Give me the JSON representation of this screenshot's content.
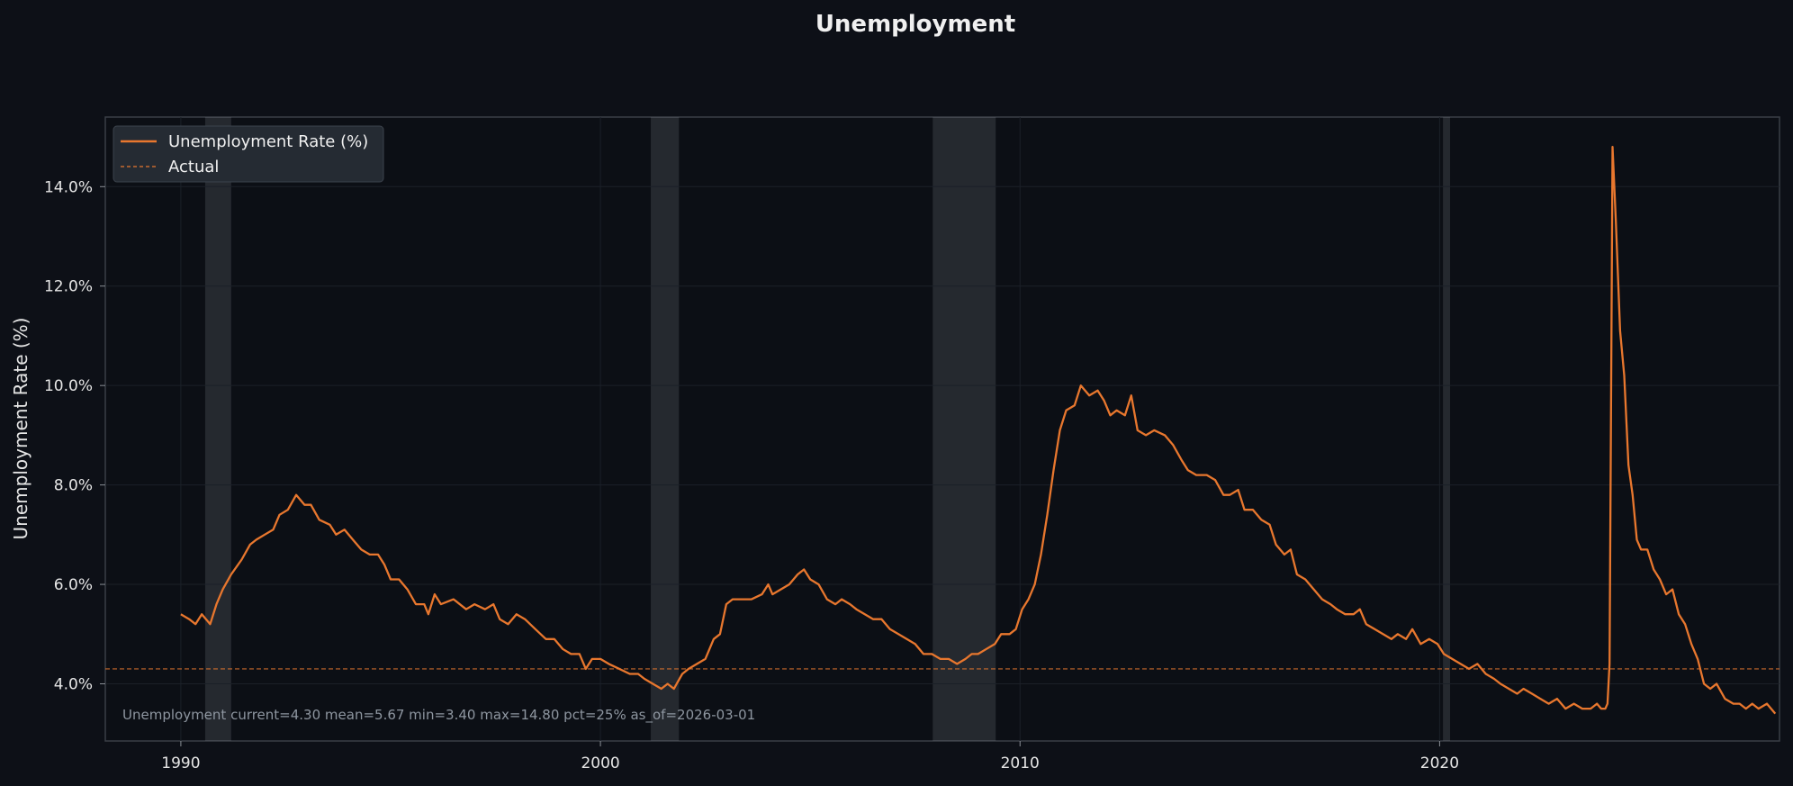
{
  "chart_data": {
    "type": "line",
    "title": "Unemployment",
    "xlabel": "",
    "ylabel": "Unemployment Rate (%)",
    "xlim": [
      1988.2,
      2028.1
    ],
    "ylim": [
      2.85,
      15.4
    ],
    "x_ticks": [
      1990,
      2000,
      2010,
      2020
    ],
    "y_ticks": [
      4,
      6,
      8,
      10,
      12,
      14
    ],
    "y_tick_labels": [
      "4.0%",
      "6.0%",
      "8.0%",
      "10.0%",
      "12.0%",
      "14.0%"
    ],
    "grid": true,
    "legend": {
      "placement": "top-left",
      "entries": [
        "Unemployment Rate (%)",
        "Actual"
      ]
    },
    "recessions": [
      {
        "start": 1990.58,
        "end": 1991.2
      },
      {
        "start": 2001.2,
        "end": 2001.87
      },
      {
        "start": 2007.92,
        "end": 2009.42
      },
      {
        "start": 2020.08,
        "end": 2020.25
      }
    ],
    "reference_line": {
      "name": "Actual",
      "value": 4.3
    },
    "annotation": "Unemployment  current=4.30  mean=5.67  min=3.40  max=14.80  pct=25%  as_of=2026-03-01",
    "series": [
      {
        "name": "Unemployment Rate (%)",
        "color": "#e8772e",
        "points": [
          [
            1990.0,
            5.4
          ],
          [
            1990.2,
            5.3
          ],
          [
            1990.35,
            5.2
          ],
          [
            1990.5,
            5.4
          ],
          [
            1990.7,
            5.2
          ],
          [
            1990.85,
            5.6
          ],
          [
            1991.0,
            5.9
          ],
          [
            1991.2,
            6.2
          ],
          [
            1991.45,
            6.5
          ],
          [
            1991.65,
            6.8
          ],
          [
            1991.8,
            6.9
          ],
          [
            1992.0,
            7.0
          ],
          [
            1992.2,
            7.1
          ],
          [
            1992.35,
            7.4
          ],
          [
            1992.55,
            7.5
          ],
          [
            1992.75,
            7.8
          ],
          [
            1992.95,
            7.6
          ],
          [
            1993.1,
            7.6
          ],
          [
            1993.3,
            7.3
          ],
          [
            1993.55,
            7.2
          ],
          [
            1993.7,
            7.0
          ],
          [
            1993.9,
            7.1
          ],
          [
            1994.1,
            6.9
          ],
          [
            1994.3,
            6.7
          ],
          [
            1994.5,
            6.6
          ],
          [
            1994.7,
            6.6
          ],
          [
            1994.85,
            6.4
          ],
          [
            1995.0,
            6.1
          ],
          [
            1995.2,
            6.1
          ],
          [
            1995.4,
            5.9
          ],
          [
            1995.6,
            5.6
          ],
          [
            1995.8,
            5.6
          ],
          [
            1995.9,
            5.4
          ],
          [
            1996.05,
            5.8
          ],
          [
            1996.2,
            5.6
          ],
          [
            1996.5,
            5.7
          ],
          [
            1996.8,
            5.5
          ],
          [
            1997.0,
            5.6
          ],
          [
            1997.25,
            5.5
          ],
          [
            1997.45,
            5.6
          ],
          [
            1997.6,
            5.3
          ],
          [
            1997.8,
            5.2
          ],
          [
            1998.0,
            5.4
          ],
          [
            1998.2,
            5.3
          ],
          [
            1998.45,
            5.1
          ],
          [
            1998.7,
            4.9
          ],
          [
            1998.9,
            4.9
          ],
          [
            1999.1,
            4.7
          ],
          [
            1999.3,
            4.6
          ],
          [
            1999.5,
            4.6
          ],
          [
            1999.65,
            4.3
          ],
          [
            1999.8,
            4.5
          ],
          [
            2000.0,
            4.5
          ],
          [
            2000.2,
            4.4
          ],
          [
            2000.45,
            4.3
          ],
          [
            2000.7,
            4.2
          ],
          [
            2000.9,
            4.2
          ],
          [
            2001.05,
            4.1
          ],
          [
            2001.25,
            4.0
          ],
          [
            2001.45,
            3.9
          ],
          [
            2001.6,
            4.0
          ],
          [
            2001.75,
            3.9
          ],
          [
            2001.95,
            4.2
          ],
          [
            2002.1,
            4.3
          ],
          [
            2002.3,
            4.4
          ],
          [
            2002.5,
            4.5
          ],
          [
            2002.7,
            4.9
          ],
          [
            2002.85,
            5.0
          ],
          [
            2003.0,
            5.6
          ],
          [
            2003.15,
            5.7
          ],
          [
            2003.4,
            5.7
          ],
          [
            2003.6,
            5.7
          ],
          [
            2003.85,
            5.8
          ],
          [
            2004.0,
            6.0
          ],
          [
            2004.1,
            5.8
          ],
          [
            2004.3,
            5.9
          ],
          [
            2004.5,
            6.0
          ],
          [
            2004.7,
            6.2
          ],
          [
            2004.85,
            6.3
          ],
          [
            2005.0,
            6.1
          ],
          [
            2005.2,
            6.0
          ],
          [
            2005.4,
            5.7
          ],
          [
            2005.6,
            5.6
          ],
          [
            2005.75,
            5.7
          ],
          [
            2005.95,
            5.6
          ],
          [
            2006.1,
            5.5
          ],
          [
            2006.3,
            5.4
          ],
          [
            2006.5,
            5.3
          ],
          [
            2006.7,
            5.3
          ],
          [
            2006.9,
            5.1
          ],
          [
            2007.1,
            5.0
          ],
          [
            2007.3,
            4.9
          ],
          [
            2007.5,
            4.8
          ],
          [
            2007.7,
            4.6
          ],
          [
            2007.9,
            4.6
          ],
          [
            2008.1,
            4.5
          ],
          [
            2008.3,
            4.5
          ],
          [
            2008.5,
            4.4
          ],
          [
            2008.7,
            4.5
          ],
          [
            2008.85,
            4.6
          ],
          [
            2009.0,
            4.6
          ],
          [
            2009.2,
            4.7
          ],
          [
            2009.4,
            4.8
          ],
          [
            2009.55,
            5.0
          ],
          [
            2009.75,
            5.0
          ],
          [
            2009.9,
            5.1
          ],
          [
            2010.05,
            5.5
          ],
          [
            2010.2,
            5.7
          ],
          [
            2010.35,
            6.0
          ],
          [
            2010.5,
            6.6
          ],
          [
            2010.65,
            7.4
          ],
          [
            2010.8,
            8.3
          ],
          [
            2010.95,
            9.1
          ],
          [
            2011.1,
            9.5
          ],
          [
            2011.3,
            9.6
          ],
          [
            2011.45,
            10.0
          ],
          [
            2011.65,
            9.8
          ],
          [
            2011.85,
            9.9
          ],
          [
            2012.0,
            9.7
          ],
          [
            2012.15,
            9.4
          ],
          [
            2012.3,
            9.5
          ],
          [
            2012.5,
            9.4
          ],
          [
            2012.65,
            9.8
          ],
          [
            2012.8,
            9.1
          ],
          [
            2013.0,
            9.0
          ],
          [
            2013.2,
            9.1
          ],
          [
            2013.45,
            9.0
          ],
          [
            2013.65,
            8.8
          ],
          [
            2013.85,
            8.5
          ],
          [
            2014.0,
            8.3
          ],
          [
            2014.2,
            8.2
          ],
          [
            2014.45,
            8.2
          ],
          [
            2014.65,
            8.1
          ],
          [
            2014.85,
            7.8
          ],
          [
            2015.0,
            7.8
          ],
          [
            2015.2,
            7.9
          ],
          [
            2015.35,
            7.5
          ],
          [
            2015.55,
            7.5
          ],
          [
            2015.75,
            7.3
          ],
          [
            2015.95,
            7.2
          ],
          [
            2016.1,
            6.8
          ],
          [
            2016.3,
            6.6
          ],
          [
            2016.45,
            6.7
          ],
          [
            2016.6,
            6.2
          ],
          [
            2016.8,
            6.1
          ],
          [
            2017.0,
            5.9
          ],
          [
            2017.2,
            5.7
          ],
          [
            2017.4,
            5.6
          ],
          [
            2017.55,
            5.5
          ],
          [
            2017.75,
            5.4
          ],
          [
            2017.95,
            5.4
          ],
          [
            2018.1,
            5.5
          ],
          [
            2018.25,
            5.2
          ],
          [
            2018.45,
            5.1
          ],
          [
            2018.65,
            5.0
          ],
          [
            2018.85,
            4.9
          ],
          [
            2019.0,
            5.0
          ],
          [
            2019.2,
            4.9
          ],
          [
            2019.35,
            5.1
          ],
          [
            2019.55,
            4.8
          ],
          [
            2019.75,
            4.9
          ],
          [
            2019.95,
            4.8
          ],
          [
            2020.1,
            4.6
          ],
          [
            2020.3,
            4.5
          ],
          [
            2020.5,
            4.4
          ],
          [
            2020.7,
            4.3
          ],
          [
            2020.9,
            4.4
          ],
          [
            2021.1,
            4.2
          ],
          [
            2021.3,
            4.1
          ],
          [
            2021.45,
            4.0
          ],
          [
            2021.65,
            3.9
          ],
          [
            2021.85,
            3.8
          ],
          [
            2022.0,
            3.9
          ],
          [
            2022.2,
            3.8
          ],
          [
            2022.4,
            3.7
          ],
          [
            2022.6,
            3.6
          ],
          [
            2022.8,
            3.7
          ],
          [
            2023.0,
            3.5
          ],
          [
            2023.2,
            3.6
          ],
          [
            2023.4,
            3.5
          ],
          [
            2023.6,
            3.5
          ],
          [
            2023.75,
            3.6
          ],
          [
            2023.85,
            3.5
          ],
          [
            2023.95,
            3.5
          ],
          [
            2024.0,
            3.6
          ],
          [
            2024.05,
            4.4
          ],
          [
            2024.12,
            14.8
          ],
          [
            2024.2,
            13.3
          ],
          [
            2024.3,
            11.1
          ],
          [
            2024.4,
            10.2
          ],
          [
            2024.5,
            8.4
          ],
          [
            2024.6,
            7.8
          ],
          [
            2024.7,
            6.9
          ],
          [
            2024.8,
            6.7
          ],
          [
            2024.95,
            6.7
          ],
          [
            2025.1,
            6.3
          ],
          [
            2025.25,
            6.1
          ],
          [
            2025.4,
            5.8
          ],
          [
            2025.55,
            5.9
          ],
          [
            2025.7,
            5.4
          ],
          [
            2025.85,
            5.2
          ],
          [
            2026.0,
            4.8
          ],
          [
            2026.15,
            4.5
          ],
          [
            2026.3,
            4.0
          ],
          [
            2026.45,
            3.9
          ],
          [
            2026.6,
            4.0
          ],
          [
            2026.8,
            3.7
          ],
          [
            2027.0,
            3.6
          ],
          [
            2027.15,
            3.6
          ],
          [
            2027.3,
            3.5
          ],
          [
            2027.45,
            3.6
          ],
          [
            2027.6,
            3.5
          ],
          [
            2027.8,
            3.6
          ],
          [
            2028.0,
            3.4
          ]
        ]
      }
    ]
  }
}
